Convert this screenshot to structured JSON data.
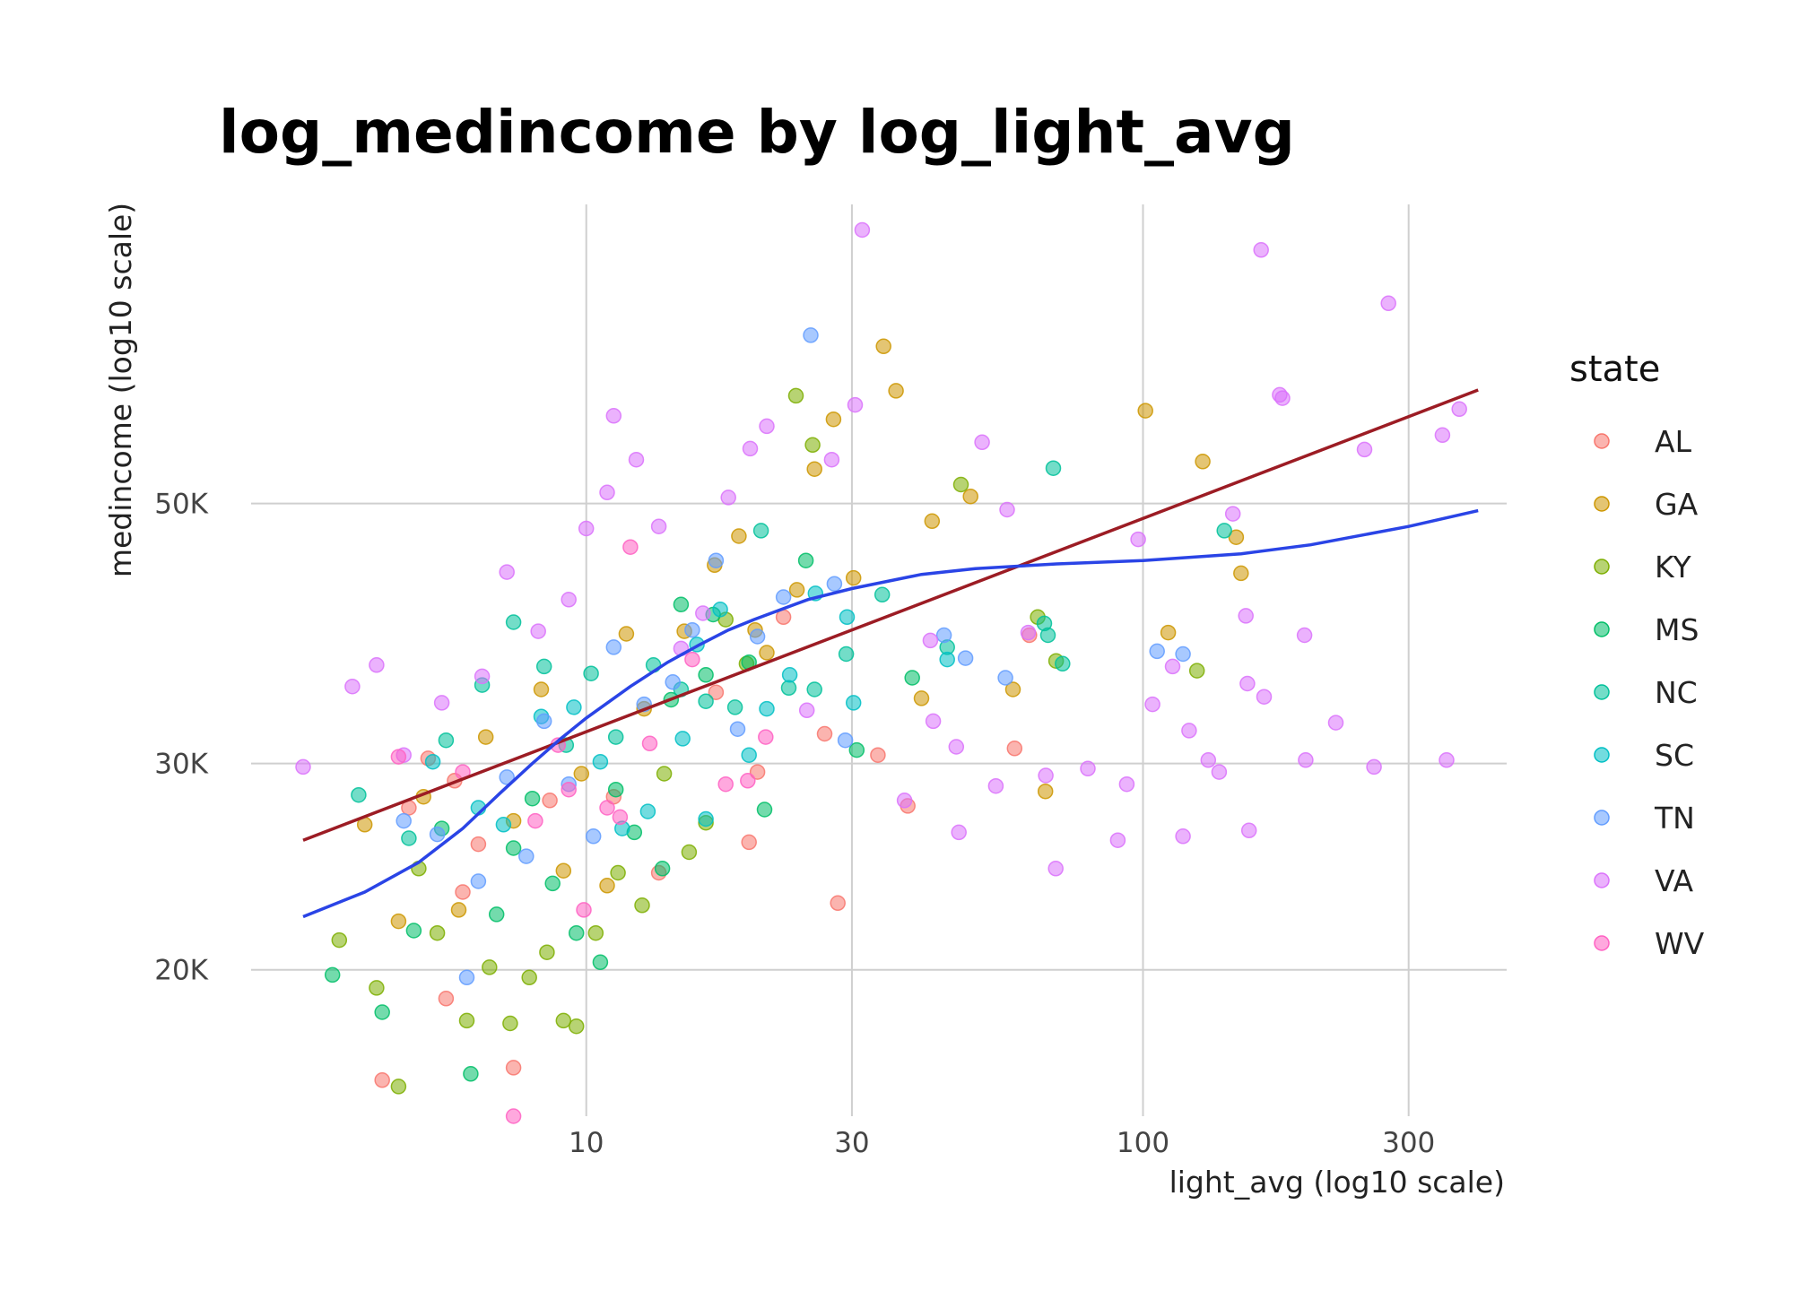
{
  "chart_data": {
    "type": "scatter",
    "title": "log_medincome by log_light_avg",
    "xlabel": "light_avg (log10 scale)",
    "ylabel": "medincome (log10 scale)",
    "x_scale": "log10",
    "y_scale": "log10",
    "xlim": [
      2.5,
      450
    ],
    "ylim": [
      15000,
      90000
    ],
    "x_ticks": [
      {
        "value": 10,
        "label": "10"
      },
      {
        "value": 30,
        "label": "30"
      },
      {
        "value": 100,
        "label": "100"
      },
      {
        "value": 300,
        "label": "300"
      }
    ],
    "y_ticks": [
      {
        "value": 20000,
        "label": "20K"
      },
      {
        "value": 30000,
        "label": "30K"
      },
      {
        "value": 50000,
        "label": "50K"
      }
    ],
    "grid": true,
    "legend": {
      "title": "state",
      "position": "right"
    },
    "series": [
      {
        "name": "AL",
        "color": "#F8766D",
        "points": [
          [
            4.3,
            16100
          ],
          [
            5.6,
            18900
          ],
          [
            6.0,
            23300
          ],
          [
            7.4,
            16500
          ],
          [
            4.8,
            27500
          ],
          [
            5.2,
            30300
          ],
          [
            6.4,
            25600
          ],
          [
            8.6,
            27900
          ],
          [
            5.8,
            29000
          ],
          [
            11.2,
            28100
          ],
          [
            13.5,
            24200
          ],
          [
            19.6,
            25700
          ],
          [
            20.3,
            29500
          ],
          [
            17.1,
            34500
          ],
          [
            22.6,
            40000
          ],
          [
            33.4,
            30500
          ],
          [
            26.8,
            31800
          ],
          [
            37.8,
            27600
          ],
          [
            58.8,
            30900
          ],
          [
            62.5,
            38600
          ],
          [
            28.3,
            22800
          ]
        ]
      },
      {
        "name": "GA",
        "color": "#CD9600",
        "points": [
          [
            4.0,
            26600
          ],
          [
            4.6,
            22000
          ],
          [
            5.1,
            28100
          ],
          [
            5.9,
            22500
          ],
          [
            6.6,
            31600
          ],
          [
            7.4,
            26800
          ],
          [
            8.3,
            34700
          ],
          [
            9.1,
            24300
          ],
          [
            9.8,
            29400
          ],
          [
            10.9,
            23600
          ],
          [
            11.8,
            38700
          ],
          [
            12.7,
            33400
          ],
          [
            15.0,
            38900
          ],
          [
            17.0,
            44300
          ],
          [
            18.8,
            46900
          ],
          [
            21.1,
            37300
          ],
          [
            23.9,
            42200
          ],
          [
            25.7,
            53500
          ],
          [
            27.8,
            59000
          ],
          [
            30.2,
            43200
          ],
          [
            34.2,
            68100
          ],
          [
            36.0,
            62400
          ],
          [
            41.8,
            48300
          ],
          [
            49.0,
            50700
          ],
          [
            58.4,
            34700
          ],
          [
            66.8,
            28400
          ],
          [
            101,
            60000
          ],
          [
            128,
            54300
          ],
          [
            147,
            46800
          ],
          [
            150,
            43600
          ],
          [
            111,
            38800
          ],
          [
            40,
            34100
          ],
          [
            20.1,
            39000
          ]
        ]
      },
      {
        "name": "KY",
        "color": "#7CAE00",
        "points": [
          [
            3.6,
            21200
          ],
          [
            4.2,
            19300
          ],
          [
            4.6,
            15900
          ],
          [
            5.0,
            24400
          ],
          [
            5.4,
            21500
          ],
          [
            6.1,
            18100
          ],
          [
            6.7,
            20100
          ],
          [
            7.3,
            18000
          ],
          [
            7.9,
            19700
          ],
          [
            8.5,
            20700
          ],
          [
            9.1,
            18100
          ],
          [
            9.6,
            17900
          ],
          [
            10.4,
            21500
          ],
          [
            11.4,
            24200
          ],
          [
            12.6,
            22700
          ],
          [
            13.8,
            29400
          ],
          [
            15.3,
            25200
          ],
          [
            16.4,
            26700
          ],
          [
            17.8,
            39800
          ],
          [
            23.8,
            61800
          ],
          [
            25.5,
            56100
          ],
          [
            47.1,
            51900
          ],
          [
            64.7,
            40000
          ],
          [
            69.8,
            36700
          ],
          [
            125,
            36000
          ],
          [
            19.4,
            36500
          ]
        ]
      },
      {
        "name": "MS",
        "color": "#00BE67",
        "points": [
          [
            3.5,
            19800
          ],
          [
            4.3,
            18400
          ],
          [
            4.9,
            21600
          ],
          [
            5.5,
            26400
          ],
          [
            6.2,
            16300
          ],
          [
            6.9,
            22300
          ],
          [
            7.4,
            25400
          ],
          [
            8.0,
            28000
          ],
          [
            8.7,
            23700
          ],
          [
            9.6,
            21500
          ],
          [
            10.6,
            20300
          ],
          [
            11.3,
            28500
          ],
          [
            12.2,
            26200
          ],
          [
            13.7,
            24400
          ],
          [
            14.8,
            41000
          ],
          [
            16.9,
            40200
          ],
          [
            19.6,
            36600
          ],
          [
            20.9,
            27400
          ],
          [
            24.8,
            44700
          ],
          [
            30.6,
            30800
          ],
          [
            38.5,
            35500
          ],
          [
            14.2,
            34000
          ],
          [
            16.4,
            35700
          ]
        ]
      },
      {
        "name": "NC",
        "color": "#00BFC4",
        "points": [
          [
            3.9,
            28200
          ],
          [
            4.8,
            25900
          ],
          [
            5.6,
            31400
          ],
          [
            6.5,
            35000
          ],
          [
            7.4,
            39600
          ],
          [
            8.4,
            36300
          ],
          [
            9.2,
            31100
          ],
          [
            10.2,
            35800
          ],
          [
            11.3,
            31600
          ],
          [
            13.2,
            36400
          ],
          [
            14.8,
            34700
          ],
          [
            16.4,
            33900
          ],
          [
            18.5,
            33500
          ],
          [
            20.6,
            47400
          ],
          [
            23.1,
            34800
          ],
          [
            25.7,
            34700
          ],
          [
            29.3,
            37200
          ],
          [
            34.0,
            41800
          ],
          [
            44.5,
            37700
          ],
          [
            66.5,
            39500
          ],
          [
            67.5,
            38600
          ],
          [
            69.0,
            53600
          ],
          [
            71.7,
            36500
          ],
          [
            140,
            47400
          ]
        ]
      },
      {
        "name": "SC",
        "color": "#00A9FF",
        "points": [
          [
            5.3,
            30100
          ],
          [
            6.4,
            27500
          ],
          [
            7.1,
            26600
          ],
          [
            8.3,
            32900
          ],
          [
            9.5,
            33500
          ],
          [
            10.6,
            30100
          ],
          [
            11.6,
            26400
          ],
          [
            12.9,
            27300
          ],
          [
            14.9,
            31500
          ],
          [
            15.8,
            37900
          ],
          [
            17.4,
            40600
          ],
          [
            19.6,
            30500
          ],
          [
            23.2,
            35700
          ],
          [
            25.8,
            41900
          ],
          [
            29.4,
            40000
          ],
          [
            30.2,
            33800
          ],
          [
            44.5,
            36800
          ],
          [
            16.4,
            26900
          ],
          [
            21.1,
            33400
          ]
        ]
      },
      {
        "name": "TN",
        "color": "#8494FF",
        "points": [
          [
            4.7,
            26800
          ],
          [
            5.4,
            26100
          ],
          [
            6.4,
            23800
          ],
          [
            7.2,
            29200
          ],
          [
            7.8,
            25000
          ],
          [
            8.4,
            32600
          ],
          [
            9.3,
            28800
          ],
          [
            10.3,
            26000
          ],
          [
            11.2,
            37700
          ],
          [
            12.7,
            33700
          ],
          [
            14.3,
            35200
          ],
          [
            15.5,
            39000
          ],
          [
            17.1,
            44700
          ],
          [
            18.7,
            32100
          ],
          [
            20.3,
            38500
          ],
          [
            22.6,
            41600
          ],
          [
            25.3,
            69600
          ],
          [
            27.9,
            42700
          ],
          [
            29.2,
            31400
          ],
          [
            43.9,
            38600
          ],
          [
            48.0,
            36900
          ],
          [
            56.6,
            35500
          ],
          [
            106,
            37400
          ],
          [
            118,
            37200
          ],
          [
            6.1,
            19700
          ]
        ]
      },
      {
        "name": "VA",
        "color": "#E68613",
        "points": []
      },
      {
        "name": "WV",
        "color": "#FF61CC",
        "points": [
          [
            4.6,
            30400
          ],
          [
            6.0,
            29500
          ],
          [
            7.4,
            15000
          ],
          [
            8.1,
            26800
          ],
          [
            8.9,
            31100
          ],
          [
            9.3,
            28500
          ],
          [
            9.9,
            22500
          ],
          [
            11.5,
            27000
          ],
          [
            13.0,
            31200
          ],
          [
            15.5,
            36800
          ],
          [
            17.8,
            28800
          ],
          [
            19.5,
            29000
          ],
          [
            21.0,
            31600
          ],
          [
            12.0,
            45900
          ],
          [
            10.9,
            27500
          ]
        ]
      }
    ],
    "va_points": [
      [
        3.1,
        29800
      ],
      [
        3.8,
        34900
      ],
      [
        4.2,
        36400
      ],
      [
        4.7,
        30500
      ],
      [
        5.5,
        33800
      ],
      [
        6.5,
        35600
      ],
      [
        7.2,
        43700
      ],
      [
        8.2,
        38900
      ],
      [
        9.3,
        41400
      ],
      [
        10.0,
        47600
      ],
      [
        10.9,
        51100
      ],
      [
        11.2,
        59400
      ],
      [
        12.3,
        54500
      ],
      [
        13.5,
        47800
      ],
      [
        14.8,
        37600
      ],
      [
        16.2,
        40300
      ],
      [
        18.0,
        50600
      ],
      [
        19.7,
        55700
      ],
      [
        21.1,
        58200
      ],
      [
        24.9,
        33300
      ],
      [
        27.6,
        54500
      ],
      [
        30.4,
        60700
      ],
      [
        31.3,
        85600
      ],
      [
        37.3,
        27900
      ],
      [
        41.5,
        38200
      ],
      [
        46.2,
        31000
      ],
      [
        46.7,
        26200
      ],
      [
        51.4,
        56400
      ],
      [
        54.4,
        28700
      ],
      [
        57.0,
        49400
      ],
      [
        62.2,
        38800
      ],
      [
        66.9,
        29300
      ],
      [
        69.7,
        24400
      ],
      [
        79.6,
        29700
      ],
      [
        90.1,
        25800
      ],
      [
        93.5,
        28800
      ],
      [
        98.0,
        46600
      ],
      [
        104,
        33700
      ],
      [
        113,
        36300
      ],
      [
        118,
        26000
      ],
      [
        121,
        32000
      ],
      [
        131,
        30200
      ],
      [
        137,
        29500
      ],
      [
        145,
        49000
      ],
      [
        153,
        40100
      ],
      [
        154,
        35100
      ],
      [
        155,
        26300
      ],
      [
        163,
        82300
      ],
      [
        165,
        34200
      ],
      [
        176,
        61900
      ],
      [
        178,
        61500
      ],
      [
        195,
        38600
      ],
      [
        196,
        30200
      ],
      [
        222,
        32500
      ],
      [
        250,
        55600
      ],
      [
        260,
        29800
      ],
      [
        276,
        74100
      ],
      [
        345,
        57200
      ],
      [
        370,
        60200
      ],
      [
        351,
        30200
      ],
      [
        42.0,
        32600
      ]
    ]
  },
  "fit_lines": [
    {
      "name": "linear",
      "color": "#9C1C24",
      "x": [
        3.1,
        400
      ],
      "y": [
        25800,
        62500
      ]
    },
    {
      "name": "loess",
      "color": "#2A44E6",
      "x": [
        3.1,
        4.0,
        5.0,
        6.0,
        7.0,
        8.0,
        9.0,
        10.0,
        12.0,
        14.0,
        16.0,
        18.0,
        20.0,
        25.0,
        30.0,
        40.0,
        50.0,
        70.0,
        100.0,
        150.0,
        200.0,
        300.0,
        400.0
      ],
      "y": [
        22200,
        23300,
        24700,
        26400,
        28300,
        30000,
        31500,
        32800,
        34900,
        36600,
        37900,
        39000,
        39800,
        41400,
        42300,
        43500,
        44000,
        44400,
        44700,
        45300,
        46100,
        47800,
        49300
      ]
    }
  ]
}
